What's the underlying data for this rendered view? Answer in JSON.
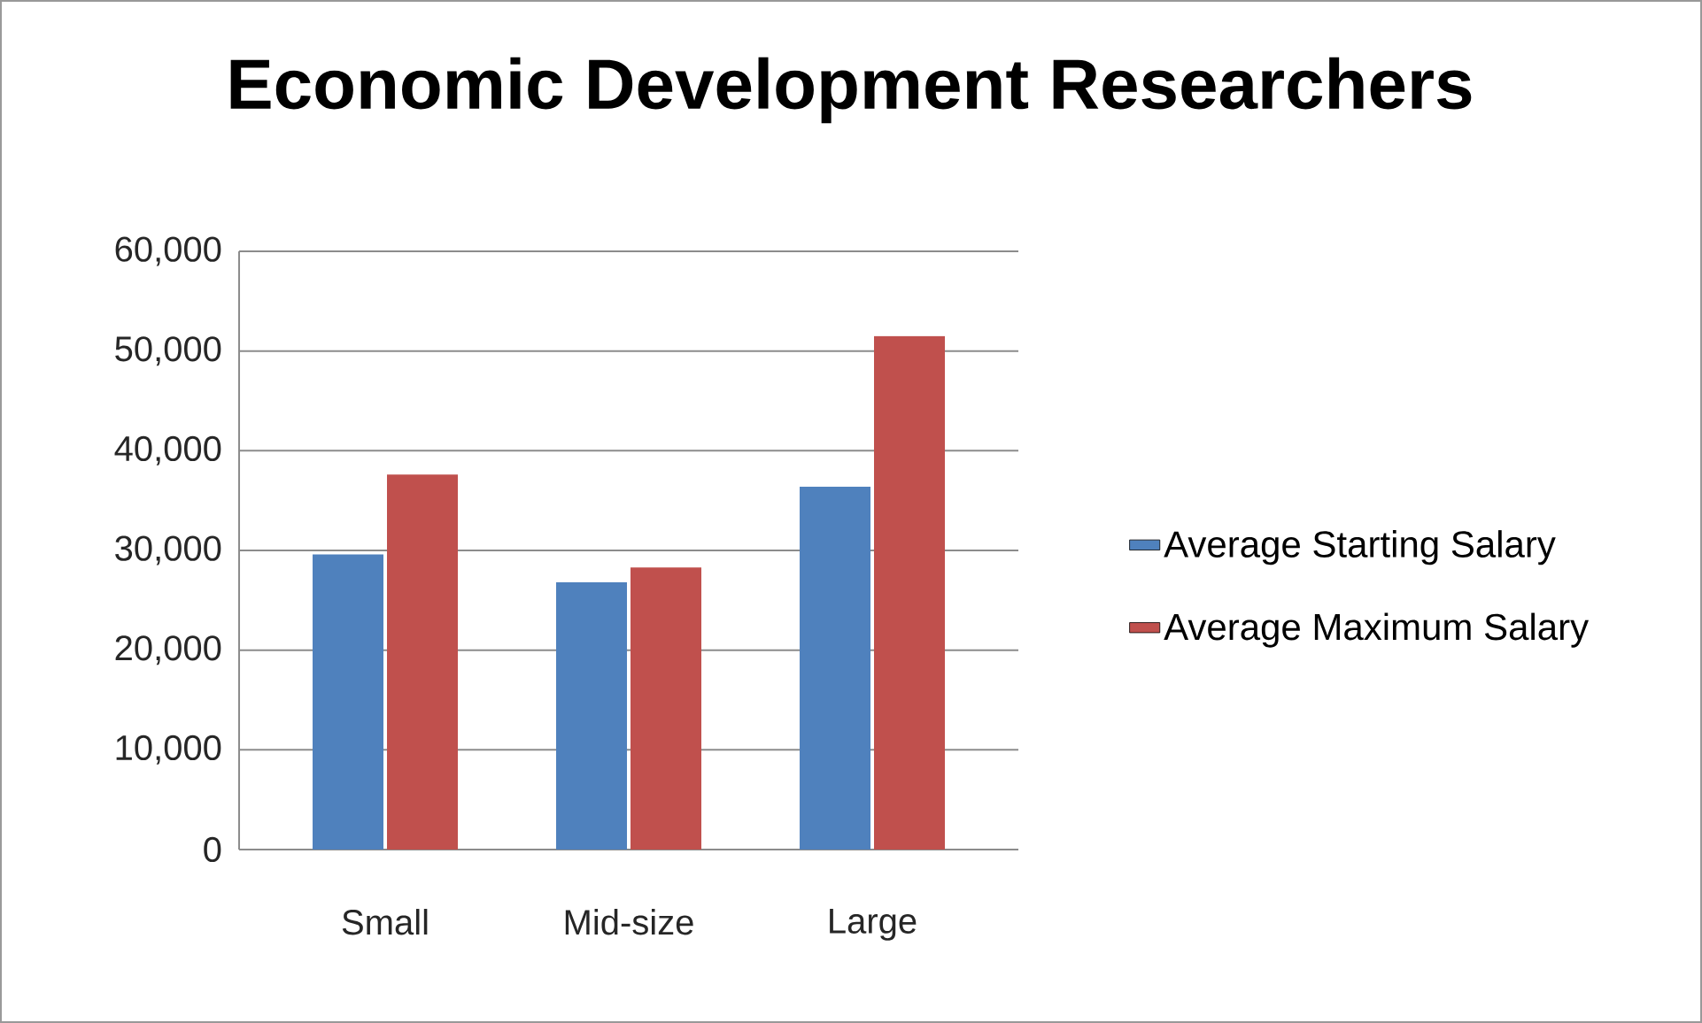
{
  "chart_data": {
    "type": "bar",
    "title": "Economic Development Researchers",
    "categories": [
      "Small",
      "Mid-size",
      "Large"
    ],
    "series": [
      {
        "name": "Average Starting Salary",
        "color": "#4f81bd",
        "values": [
          29600,
          26800,
          36400
        ]
      },
      {
        "name": "Average Maximum Salary",
        "color": "#c0504d",
        "values": [
          37600,
          28300,
          51500
        ]
      }
    ],
    "ylim": [
      0,
      60000
    ],
    "yticks": [
      0,
      {
        "value": 10000,
        "label": "10,000"
      },
      {
        "value": 20000,
        "label": "20,000"
      },
      {
        "value": 30000,
        "label": "30,000"
      },
      {
        "value": 40000,
        "label": "40,000"
      },
      {
        "value": 50000,
        "label": "50,000"
      },
      {
        "value": 60000,
        "label": "60,000"
      }
    ],
    "grid": "y",
    "legend": "right"
  }
}
